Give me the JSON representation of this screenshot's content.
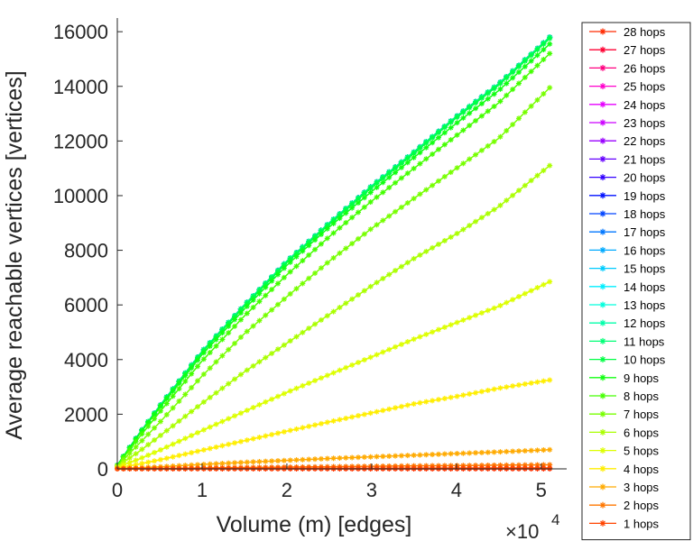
{
  "chart_data": {
    "type": "line",
    "xlabel": "Volume (m) [edges]",
    "ylabel": "Average reachable vertices [vertices]",
    "x_multiplier": "×10",
    "x_multiplier_exp": "4",
    "xlim": [
      0,
      5.3
    ],
    "ylim": [
      0,
      16500
    ],
    "xticks": [
      0,
      1,
      2,
      3,
      4,
      5
    ],
    "yticks": [
      0,
      2000,
      4000,
      6000,
      8000,
      10000,
      12000,
      14000,
      16000
    ],
    "xtick_labels": [
      "0",
      "1",
      "2",
      "3",
      "4",
      "5"
    ],
    "ytick_labels": [
      "0",
      "2000",
      "4000",
      "6000",
      "8000",
      "10000",
      "12000",
      "14000",
      "16000"
    ],
    "legend_position": "outside-right",
    "grid": false,
    "x": [
      0,
      0.25,
      0.5,
      1,
      1.5,
      2,
      2.5,
      3,
      3.5,
      4,
      4.5,
      5.1
    ],
    "series": [
      {
        "name": "28 hops",
        "color": "#ff2a00",
        "values": [
          0,
          0,
          0,
          0,
          0,
          0,
          0,
          0,
          0,
          0,
          0,
          0
        ]
      },
      {
        "name": "27 hops",
        "color": "#ff0033",
        "values": [
          130,
          1250,
          2300,
          4300,
          6000,
          7600,
          9000,
          10350,
          11600,
          12900,
          14100,
          15800
        ]
      },
      {
        "name": "26 hops",
        "color": "#ff0080",
        "values": [
          130,
          1250,
          2300,
          4300,
          6000,
          7600,
          9000,
          10350,
          11600,
          12900,
          14100,
          15800
        ]
      },
      {
        "name": "25 hops",
        "color": "#ff00cc",
        "values": [
          130,
          1250,
          2300,
          4300,
          6000,
          7600,
          9000,
          10350,
          11600,
          12900,
          14100,
          15800
        ]
      },
      {
        "name": "24 hops",
        "color": "#e600ff",
        "values": [
          130,
          1250,
          2300,
          4300,
          6000,
          7600,
          9000,
          10350,
          11600,
          12900,
          14100,
          15800
        ]
      },
      {
        "name": "23 hops",
        "color": "#cc00ff",
        "values": [
          130,
          1250,
          2300,
          4300,
          6000,
          7600,
          9000,
          10350,
          11600,
          12900,
          14100,
          15800
        ]
      },
      {
        "name": "22 hops",
        "color": "#9900ff",
        "values": [
          130,
          1250,
          2300,
          4300,
          6000,
          7600,
          9000,
          10350,
          11600,
          12900,
          14100,
          15800
        ]
      },
      {
        "name": "21 hops",
        "color": "#6600ff",
        "values": [
          130,
          1250,
          2300,
          4300,
          6000,
          7600,
          9000,
          10350,
          11600,
          12900,
          14100,
          15800
        ]
      },
      {
        "name": "20 hops",
        "color": "#3300ff",
        "values": [
          130,
          1250,
          2300,
          4300,
          6000,
          7600,
          9000,
          10350,
          11600,
          12900,
          14100,
          15800
        ]
      },
      {
        "name": "19 hops",
        "color": "#0011ff",
        "values": [
          130,
          1250,
          2300,
          4300,
          6000,
          7600,
          9000,
          10350,
          11600,
          12900,
          14100,
          15800
        ]
      },
      {
        "name": "18 hops",
        "color": "#0044ff",
        "values": [
          130,
          1250,
          2300,
          4300,
          6000,
          7600,
          9000,
          10350,
          11600,
          12900,
          14100,
          15800
        ]
      },
      {
        "name": "17 hops",
        "color": "#0077ff",
        "values": [
          130,
          1250,
          2300,
          4300,
          6000,
          7600,
          9000,
          10350,
          11600,
          12900,
          14100,
          15800
        ]
      },
      {
        "name": "16 hops",
        "color": "#00aaff",
        "values": [
          130,
          1250,
          2300,
          4300,
          6000,
          7600,
          9000,
          10350,
          11600,
          12900,
          14100,
          15800
        ]
      },
      {
        "name": "15 hops",
        "color": "#00ccff",
        "values": [
          130,
          1250,
          2300,
          4300,
          6000,
          7600,
          9000,
          10350,
          11600,
          12900,
          14100,
          15800
        ]
      },
      {
        "name": "14 hops",
        "color": "#00eeff",
        "values": [
          130,
          1250,
          2300,
          4300,
          6000,
          7600,
          9000,
          10350,
          11600,
          12900,
          14100,
          15800
        ]
      },
      {
        "name": "13 hops",
        "color": "#00ffdd",
        "values": [
          130,
          1250,
          2300,
          4300,
          6000,
          7600,
          9000,
          10350,
          11600,
          12900,
          14100,
          15800
        ]
      },
      {
        "name": "12 hops",
        "color": "#00ffaa",
        "values": [
          130,
          1250,
          2300,
          4300,
          6000,
          7600,
          9000,
          10350,
          11600,
          12900,
          14100,
          15800
        ]
      },
      {
        "name": "11 hops",
        "color": "#00ff77",
        "values": [
          130,
          1250,
          2300,
          4300,
          6000,
          7600,
          9000,
          10350,
          11600,
          12900,
          14100,
          15800
        ]
      },
      {
        "name": "10 hops",
        "color": "#00ff44",
        "values": [
          130,
          1240,
          2280,
          4260,
          5950,
          7550,
          8950,
          10300,
          11550,
          12850,
          14050,
          15750
        ]
      },
      {
        "name": "9 hops",
        "color": "#11ff11",
        "values": [
          130,
          1220,
          2240,
          4180,
          5850,
          7450,
          8850,
          10150,
          11400,
          12650,
          13850,
          15550
        ]
      },
      {
        "name": "8 hops",
        "color": "#44ff00",
        "values": [
          120,
          1120,
          2080,
          3950,
          5600,
          7100,
          8500,
          9800,
          11000,
          12200,
          13400,
          15200
        ]
      },
      {
        "name": "7 hops",
        "color": "#77ff00",
        "values": [
          110,
          900,
          1700,
          3400,
          4950,
          6300,
          7600,
          8800,
          9900,
          11000,
          12100,
          13950
        ]
      },
      {
        "name": "6 hops",
        "color": "#aaff00",
        "values": [
          90,
          620,
          1200,
          2400,
          3550,
          4600,
          5650,
          6700,
          7700,
          8600,
          9600,
          11100
        ]
      },
      {
        "name": "5 hops",
        "color": "#ddff00",
        "values": [
          70,
          350,
          680,
          1400,
          2100,
          2800,
          3450,
          4100,
          4750,
          5350,
          5950,
          6850
        ]
      },
      {
        "name": "4 hops",
        "color": "#ffee00",
        "values": [
          40,
          170,
          330,
          680,
          1030,
          1380,
          1720,
          2050,
          2380,
          2650,
          2950,
          3250
        ]
      },
      {
        "name": "3 hops",
        "color": "#ffaa00",
        "values": [
          15,
          40,
          75,
          160,
          240,
          310,
          380,
          440,
          500,
          560,
          620,
          700
        ]
      },
      {
        "name": "2 hops",
        "color": "#ff7700",
        "values": [
          5,
          10,
          18,
          35,
          50,
          65,
          80,
          95,
          110,
          120,
          135,
          150
        ]
      },
      {
        "name": "1 hops",
        "color": "#ff4400",
        "values": [
          2,
          3,
          5,
          8,
          12,
          15,
          18,
          22,
          25,
          28,
          31,
          35
        ]
      }
    ]
  }
}
